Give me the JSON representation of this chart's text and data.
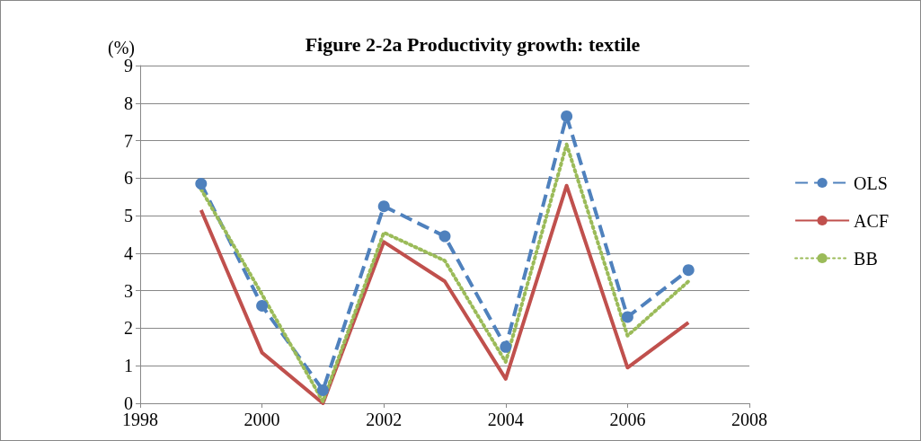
{
  "chart_data": {
    "type": "line",
    "title": "Figure 2-2a Productivity growth: textile",
    "ylabel": "(%)",
    "x": [
      1999,
      2000,
      2001,
      2002,
      2003,
      2004,
      2005,
      2006,
      2007
    ],
    "xlim": [
      1998,
      2008
    ],
    "xticks": [
      1998,
      2000,
      2002,
      2004,
      2006,
      2008
    ],
    "ylim": [
      0,
      9
    ],
    "yticks": [
      0,
      1,
      2,
      3,
      4,
      5,
      6,
      7,
      8,
      9
    ],
    "grid": "y",
    "legend": "right",
    "series": [
      {
        "name": "OLS",
        "color": "#4f81bd",
        "marker": "circle",
        "line_style": "dashed",
        "values": [
          5.85,
          2.6,
          0.35,
          5.25,
          4.45,
          1.5,
          7.65,
          2.3,
          3.55
        ]
      },
      {
        "name": "ACF",
        "color": "#c0504d",
        "marker": "none",
        "line_style": "solid",
        "values": [
          5.15,
          1.35,
          0,
          4.3,
          3.25,
          0.65,
          5.8,
          0.95,
          2.15
        ]
      },
      {
        "name": "BB",
        "color": "#9bbb59",
        "marker": "none",
        "line_style": "dotted",
        "values": [
          5.7,
          2.9,
          0.05,
          4.55,
          3.8,
          1.1,
          6.9,
          1.8,
          3.25
        ]
      }
    ]
  }
}
